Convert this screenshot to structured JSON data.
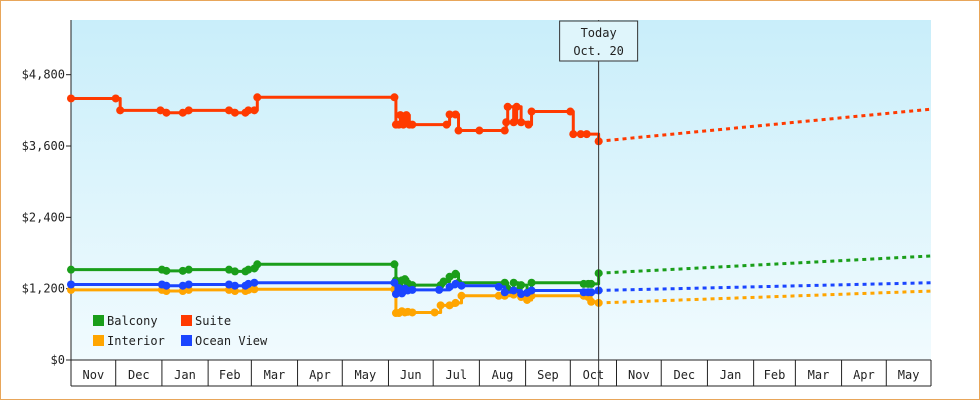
{
  "chart_data": {
    "type": "line",
    "x_axis": {
      "months": [
        "Nov",
        "Dec",
        "Jan",
        "Feb",
        "Mar",
        "Apr",
        "May",
        "Jun",
        "Jul",
        "Aug",
        "Sep",
        "Oct",
        "Nov",
        "Dec",
        "Jan",
        "Feb",
        "Mar",
        "Apr",
        "May"
      ],
      "range": [
        "2023-11-01",
        "2025-05-31"
      ]
    },
    "y_axis": {
      "ticks": [
        0,
        1200,
        2400,
        3600,
        4800
      ],
      "tick_labels": [
        "$0",
        "$1,200",
        "$2,400",
        "$3,600",
        "$4,800"
      ],
      "range": [
        0,
        5720
      ]
    },
    "grid": false,
    "today_marker": {
      "line1": "Today",
      "line2": "Oct. 20",
      "date": "2024-10-20"
    },
    "legend_position": "bottom-left",
    "colors": {
      "background_top": "#c9eefa",
      "background_bottom": "#f1fbfe",
      "border": "#e8a65a"
    },
    "series": [
      {
        "name": "Suite",
        "color": "#ff3a00",
        "points": [
          [
            "2023-11-01",
            4400
          ],
          [
            "2023-12-01",
            4400
          ],
          [
            "2023-12-04",
            4200
          ],
          [
            "2023-12-31",
            4200
          ],
          [
            "2024-01-04",
            4160
          ],
          [
            "2024-01-15",
            4160
          ],
          [
            "2024-01-19",
            4200
          ],
          [
            "2024-02-15",
            4200
          ],
          [
            "2024-02-19",
            4160
          ],
          [
            "2024-02-26",
            4160
          ],
          [
            "2024-02-28",
            4200
          ],
          [
            "2024-03-03",
            4200
          ],
          [
            "2024-03-05",
            4420
          ],
          [
            "2024-06-05",
            4420
          ],
          [
            "2024-06-06",
            3960
          ],
          [
            "2024-06-08",
            3960
          ],
          [
            "2024-06-09",
            4120
          ],
          [
            "2024-06-11",
            3960
          ],
          [
            "2024-06-13",
            4120
          ],
          [
            "2024-06-15",
            3960
          ],
          [
            "2024-06-17",
            3960
          ],
          [
            "2024-07-10",
            3960
          ],
          [
            "2024-07-12",
            4130
          ],
          [
            "2024-07-16",
            4130
          ],
          [
            "2024-07-18",
            3860
          ],
          [
            "2024-08-01",
            3860
          ],
          [
            "2024-08-18",
            3860
          ],
          [
            "2024-08-19",
            4000
          ],
          [
            "2024-08-20",
            4260
          ],
          [
            "2024-08-24",
            4000
          ],
          [
            "2024-08-26",
            4260
          ],
          [
            "2024-08-29",
            4000
          ],
          [
            "2024-09-03",
            3960
          ],
          [
            "2024-09-05",
            4180
          ],
          [
            "2024-10-01",
            4180
          ],
          [
            "2024-10-03",
            3800
          ],
          [
            "2024-10-08",
            3800
          ],
          [
            "2024-10-12",
            3800
          ],
          [
            "2024-10-20",
            3680
          ]
        ],
        "forecast": [
          [
            "2024-10-20",
            3680
          ],
          [
            "2025-05-31",
            4220
          ]
        ]
      },
      {
        "name": "Balcony",
        "color": "#1a9e1a",
        "points": [
          [
            "2023-11-01",
            1520
          ],
          [
            "2024-01-01",
            1520
          ],
          [
            "2024-01-04",
            1500
          ],
          [
            "2024-01-15",
            1500
          ],
          [
            "2024-01-19",
            1520
          ],
          [
            "2024-02-15",
            1520
          ],
          [
            "2024-02-19",
            1490
          ],
          [
            "2024-02-26",
            1490
          ],
          [
            "2024-02-28",
            1520
          ],
          [
            "2024-03-03",
            1540
          ],
          [
            "2024-03-05",
            1610
          ],
          [
            "2024-06-05",
            1610
          ],
          [
            "2024-06-06",
            1340
          ],
          [
            "2024-06-08",
            1270
          ],
          [
            "2024-06-10",
            1340
          ],
          [
            "2024-06-12",
            1360
          ],
          [
            "2024-06-14",
            1290
          ],
          [
            "2024-06-17",
            1260
          ],
          [
            "2024-07-06",
            1260
          ],
          [
            "2024-07-08",
            1320
          ],
          [
            "2024-07-12",
            1400
          ],
          [
            "2024-07-16",
            1450
          ],
          [
            "2024-07-18",
            1300
          ],
          [
            "2024-08-18",
            1300
          ],
          [
            "2024-08-20",
            1200
          ],
          [
            "2024-08-24",
            1300
          ],
          [
            "2024-08-27",
            1160
          ],
          [
            "2024-08-29",
            1260
          ],
          [
            "2024-09-02",
            1130
          ],
          [
            "2024-09-05",
            1300
          ],
          [
            "2024-10-10",
            1280
          ],
          [
            "2024-10-13",
            1280
          ],
          [
            "2024-10-15",
            1280
          ],
          [
            "2024-10-20",
            1460
          ]
        ],
        "forecast": [
          [
            "2024-10-20",
            1460
          ],
          [
            "2025-05-31",
            1750
          ]
        ]
      },
      {
        "name": "Ocean View",
        "color": "#1a45ff",
        "points": [
          [
            "2023-11-01",
            1270
          ],
          [
            "2024-01-01",
            1270
          ],
          [
            "2024-01-04",
            1250
          ],
          [
            "2024-01-15",
            1250
          ],
          [
            "2024-01-19",
            1270
          ],
          [
            "2024-02-15",
            1270
          ],
          [
            "2024-02-19",
            1250
          ],
          [
            "2024-02-26",
            1250
          ],
          [
            "2024-02-28",
            1280
          ],
          [
            "2024-03-03",
            1300
          ],
          [
            "2024-06-05",
            1300
          ],
          [
            "2024-06-06",
            1110
          ],
          [
            "2024-06-08",
            1210
          ],
          [
            "2024-06-10",
            1120
          ],
          [
            "2024-06-12",
            1200
          ],
          [
            "2024-06-14",
            1170
          ],
          [
            "2024-06-17",
            1180
          ],
          [
            "2024-07-05",
            1180
          ],
          [
            "2024-07-12",
            1230
          ],
          [
            "2024-07-16",
            1280
          ],
          [
            "2024-07-20",
            1250
          ],
          [
            "2024-08-14",
            1230
          ],
          [
            "2024-08-18",
            1140
          ],
          [
            "2024-08-24",
            1170
          ],
          [
            "2024-08-29",
            1110
          ],
          [
            "2024-09-02",
            1130
          ],
          [
            "2024-09-05",
            1170
          ],
          [
            "2024-10-10",
            1140
          ],
          [
            "2024-10-13",
            1140
          ],
          [
            "2024-10-15",
            1140
          ],
          [
            "2024-10-20",
            1170
          ]
        ],
        "forecast": [
          [
            "2024-10-20",
            1170
          ],
          [
            "2025-05-31",
            1300
          ]
        ]
      },
      {
        "name": "Interior",
        "color": "#ffa500",
        "points": [
          [
            "2023-11-01",
            1180
          ],
          [
            "2024-01-01",
            1180
          ],
          [
            "2024-01-04",
            1160
          ],
          [
            "2024-01-15",
            1160
          ],
          [
            "2024-01-19",
            1180
          ],
          [
            "2024-02-15",
            1180
          ],
          [
            "2024-02-19",
            1160
          ],
          [
            "2024-02-26",
            1160
          ],
          [
            "2024-02-28",
            1180
          ],
          [
            "2024-03-03",
            1190
          ],
          [
            "2024-06-05",
            1190
          ],
          [
            "2024-06-06",
            790
          ],
          [
            "2024-06-08",
            790
          ],
          [
            "2024-06-10",
            820
          ],
          [
            "2024-06-12",
            800
          ],
          [
            "2024-06-14",
            810
          ],
          [
            "2024-06-17",
            800
          ],
          [
            "2024-07-02",
            800
          ],
          [
            "2024-07-06",
            920
          ],
          [
            "2024-07-12",
            920
          ],
          [
            "2024-07-16",
            960
          ],
          [
            "2024-07-20",
            1080
          ],
          [
            "2024-08-14",
            1080
          ],
          [
            "2024-08-18",
            1080
          ],
          [
            "2024-08-24",
            1100
          ],
          [
            "2024-08-29",
            1060
          ],
          [
            "2024-09-02",
            1010
          ],
          [
            "2024-09-05",
            1080
          ],
          [
            "2024-10-10",
            1080
          ],
          [
            "2024-10-13",
            1060
          ],
          [
            "2024-10-15",
            980
          ],
          [
            "2024-10-20",
            960
          ]
        ],
        "forecast": [
          [
            "2024-10-20",
            960
          ],
          [
            "2025-05-31",
            1160
          ]
        ]
      }
    ],
    "legend": [
      {
        "name": "Balcony",
        "color": "#1a9e1a"
      },
      {
        "name": "Suite",
        "color": "#ff3a00"
      },
      {
        "name": "Interior",
        "color": "#ffa500"
      },
      {
        "name": "Ocean View",
        "color": "#1a45ff"
      }
    ]
  }
}
